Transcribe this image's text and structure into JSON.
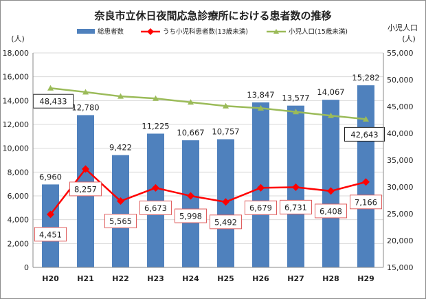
{
  "chart_data": {
    "type": "bar+line",
    "title": "奈良市立休日夜間応急診療所における患者数の推移",
    "categories": [
      "H20",
      "H21",
      "H22",
      "H23",
      "H24",
      "H25",
      "H26",
      "H27",
      "H28",
      "H29"
    ],
    "y_left": {
      "unit": "(人)",
      "range": [
        0,
        18000
      ],
      "ticks": [
        "0",
        "2,000",
        "4,000",
        "6,000",
        "8,000",
        "10,000",
        "12,000",
        "14,000",
        "16,000",
        "18,000"
      ]
    },
    "y_right": {
      "label": "小児人口",
      "unit": "(人)",
      "range": [
        15000,
        55000
      ],
      "ticks": [
        "15,000",
        "20,000",
        "25,000",
        "30,000",
        "35,000",
        "40,000",
        "45,000",
        "50,000",
        "55,000"
      ]
    },
    "series": [
      {
        "name": "総患者数",
        "type": "bar",
        "axis": "left",
        "color": "#4f81bd",
        "values": [
          6960,
          12780,
          9422,
          11225,
          10667,
          10757,
          13847,
          13577,
          14067,
          15282
        ],
        "labels": [
          "6,960",
          "12,780",
          "9,422",
          "11,225",
          "10,667",
          "10,757",
          "13,847",
          "13,577",
          "14,067",
          "15,282"
        ]
      },
      {
        "name": "うち小児科患者数(13歳未満)",
        "type": "line",
        "axis": "left",
        "color": "#ff0000",
        "marker": "diamond",
        "values": [
          4451,
          8257,
          5565,
          6673,
          5998,
          5492,
          6679,
          6731,
          6408,
          7166
        ],
        "labels": [
          "4,451",
          "8,257",
          "5,565",
          "6,673",
          "5,998",
          "5,492",
          "6,679",
          "6,731",
          "6,408",
          "7,166"
        ]
      },
      {
        "name": "小児人口(15歳未満)",
        "type": "line",
        "axis": "right",
        "color": "#9bbb59",
        "marker": "triangle",
        "values": [
          48433,
          47700,
          46900,
          46500,
          45800,
          45100,
          44700,
          44000,
          43300,
          42643
        ],
        "labels": [
          "48,433",
          "",
          "",
          "",
          "",
          "",
          "",
          "",
          "",
          "42,643"
        ]
      }
    ]
  }
}
